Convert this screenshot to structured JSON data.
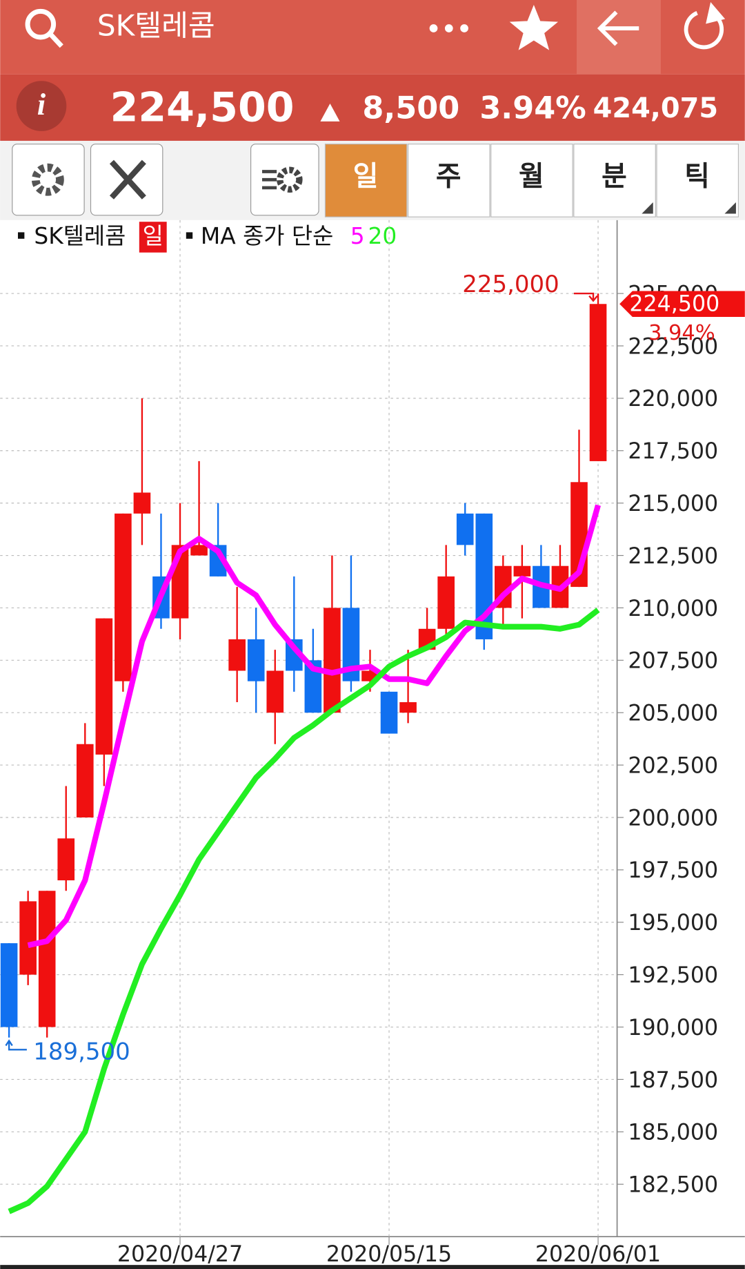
{
  "header": {
    "title": "SK텔레콤"
  },
  "quote": {
    "price": "224,500",
    "change": "8,500",
    "change_pct": "3.94%",
    "volume": "424,075"
  },
  "toolbar": {
    "periods": [
      "일",
      "주",
      "월",
      "분",
      "틱"
    ]
  },
  "chart_data": {
    "type": "candlestick",
    "legend": {
      "symbol": "SK텔레콤",
      "period": "일",
      "ma_label": "MA 종가 단순"
    },
    "categories": [
      null,
      null,
      null,
      null,
      null,
      null,
      null,
      null,
      null,
      "2020/04/27",
      null,
      null,
      null,
      null,
      null,
      null,
      null,
      null,
      null,
      null,
      "2020/05/15",
      null,
      null,
      null,
      null,
      null,
      null,
      null,
      null,
      null,
      null,
      "2020/06/01"
    ],
    "open": [
      194000,
      192500,
      190000,
      197000,
      200000,
      203000,
      206500,
      214500,
      211500,
      209500,
      212500,
      213000,
      207000,
      208500,
      205000,
      208500,
      207500,
      205000,
      210000,
      206500,
      206000,
      205000,
      208000,
      209000,
      214500,
      214500,
      210000,
      211500,
      212000,
      210000,
      211000,
      217000
    ],
    "high": [
      194000,
      196500,
      196500,
      201500,
      204500,
      209500,
      214500,
      220000,
      214500,
      215000,
      217000,
      215000,
      211000,
      210000,
      208000,
      211500,
      209000,
      212500,
      212500,
      208000,
      206000,
      208000,
      210000,
      213000,
      215000,
      214500,
      212500,
      213000,
      213000,
      213000,
      218500,
      225000
    ],
    "low": [
      189500,
      192000,
      189500,
      196500,
      200000,
      201500,
      206000,
      213000,
      209000,
      208500,
      212500,
      211500,
      205500,
      205000,
      203500,
      206000,
      205000,
      205000,
      206000,
      206000,
      204000,
      204500,
      208000,
      208500,
      212500,
      208000,
      209000,
      209500,
      210000,
      210000,
      211000,
      217000
    ],
    "close": [
      190000,
      196000,
      196500,
      199000,
      203500,
      209500,
      214500,
      215500,
      209500,
      213000,
      213000,
      211500,
      208500,
      206500,
      207000,
      207000,
      205000,
      210000,
      206500,
      207000,
      204000,
      205500,
      209000,
      211500,
      213000,
      208500,
      212000,
      212000,
      210000,
      212000,
      216000,
      224500
    ],
    "up_color": "#f01010",
    "down_color": "#1070f0",
    "series": [
      {
        "name": "5",
        "color": "#ff00ff",
        "values": [
          null,
          193900,
          194100,
          195100,
          197000,
          200700,
          204600,
          208400,
          210600,
          212700,
          213300,
          212700,
          211200,
          210600,
          209200,
          208100,
          207100,
          206900,
          207100,
          207200,
          206600,
          206600,
          206400,
          207700,
          208900,
          209600,
          210600,
          211400,
          211100,
          210900,
          211700,
          214900
        ]
      },
      {
        "name": "20",
        "color": "#22ee22",
        "values": [
          181200,
          181600,
          182400,
          183700,
          185000,
          188000,
          190600,
          193000,
          194700,
          196300,
          198000,
          199300,
          200600,
          201900,
          202800,
          203800,
          204400,
          205100,
          205700,
          206300,
          207200,
          207700,
          208100,
          208600,
          209300,
          209200,
          209100,
          209100,
          209100,
          209000,
          209200,
          209900
        ]
      }
    ],
    "ylim": [
      180000,
      228500
    ],
    "yticks": [
      {
        "value": 182500,
        "label": "182,500"
      },
      {
        "value": 185000,
        "label": "185,000"
      },
      {
        "value": 187500,
        "label": "187,500"
      },
      {
        "value": 190000,
        "label": "190,000"
      },
      {
        "value": 192500,
        "label": "192,500"
      },
      {
        "value": 195000,
        "label": "195,000"
      },
      {
        "value": 197500,
        "label": "197,500"
      },
      {
        "value": 200000,
        "label": "200,000"
      },
      {
        "value": 202500,
        "label": "202,500"
      },
      {
        "value": 205000,
        "label": "205,000"
      },
      {
        "value": 207500,
        "label": "207,500"
      },
      {
        "value": 210000,
        "label": "210,000"
      },
      {
        "value": 212500,
        "label": "212,500"
      },
      {
        "value": 215000,
        "label": "215,000"
      },
      {
        "value": 217500,
        "label": "217,500"
      },
      {
        "value": 220000,
        "label": "220,000"
      },
      {
        "value": 222500,
        "label": "222,500"
      },
      {
        "value": 225000,
        "label": "225,000"
      }
    ],
    "grid": true,
    "max_marker": {
      "value": 225000,
      "label": "225,000"
    },
    "min_marker": {
      "value": 189500,
      "label": "189,500"
    },
    "last_price": {
      "value": 224500,
      "label": "224,500"
    },
    "last_change": "3.94%"
  }
}
